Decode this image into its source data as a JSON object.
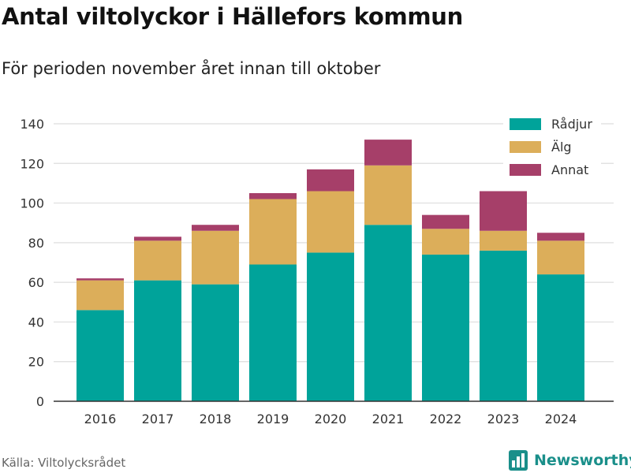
{
  "title": "Antal viltolyckor i Hällefors kommun",
  "subtitle": "För perioden november året innan till oktober",
  "source": "Källa: Viltolycksrådet",
  "brand": {
    "name": "Newsworthy",
    "icon": "bar-chart-logo-icon",
    "color": "#1a8f8a"
  },
  "chart_data": {
    "type": "bar",
    "stacked": true,
    "categories": [
      "2016",
      "2017",
      "2018",
      "2019",
      "2020",
      "2021",
      "2022",
      "2023",
      "2024"
    ],
    "series": [
      {
        "name": "Rådjur",
        "color": "#00a39a",
        "values": [
          46,
          61,
          59,
          69,
          75,
          89,
          74,
          76,
          64
        ]
      },
      {
        "name": "Älg",
        "color": "#dcae5a",
        "values": [
          15,
          20,
          27,
          33,
          31,
          30,
          13,
          10,
          17
        ]
      },
      {
        "name": "Annat",
        "color": "#a63f69",
        "values": [
          1,
          2,
          3,
          3,
          11,
          13,
          7,
          20,
          4
        ]
      }
    ],
    "ylim": [
      0,
      140
    ],
    "yticks": [
      0,
      20,
      40,
      60,
      80,
      100,
      120,
      140
    ],
    "grid": true,
    "legend": "top-right",
    "xlabel": "",
    "ylabel": ""
  }
}
